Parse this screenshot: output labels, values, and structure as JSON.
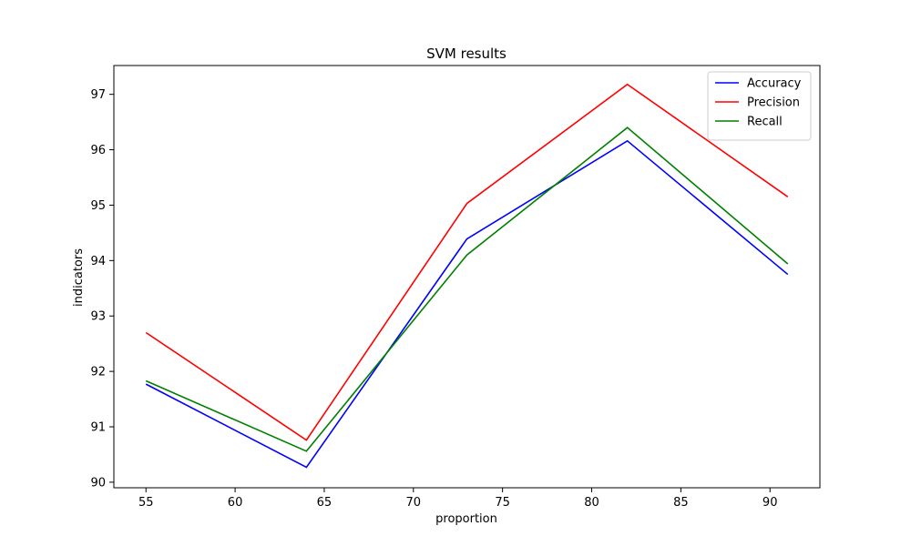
{
  "chart_data": {
    "type": "line",
    "title": "SVM results",
    "xlabel": "proportion",
    "ylabel": "indicators",
    "x": [
      55,
      64,
      73,
      82,
      91
    ],
    "xlim": [
      53.2,
      92.8
    ],
    "ylim": [
      89.9,
      97.52
    ],
    "xticks": [
      55,
      60,
      65,
      70,
      75,
      80,
      85,
      90
    ],
    "yticks": [
      90,
      91,
      92,
      93,
      94,
      95,
      96,
      97
    ],
    "grid": false,
    "legend_position": "top-right",
    "series": [
      {
        "name": "Accuracy",
        "color": "#0000ff",
        "values": [
          91.77,
          90.27,
          94.39,
          96.16,
          93.75
        ]
      },
      {
        "name": "Precision",
        "color": "#ff0000",
        "values": [
          92.7,
          90.76,
          95.03,
          97.18,
          95.15
        ]
      },
      {
        "name": "Recall",
        "color": "#008000",
        "values": [
          91.83,
          90.56,
          94.1,
          96.4,
          93.94
        ]
      }
    ]
  }
}
